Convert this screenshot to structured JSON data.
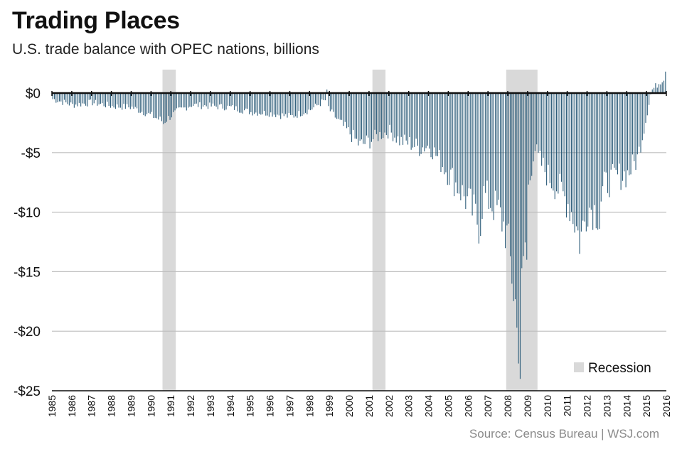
{
  "chart_data": {
    "type": "bar",
    "title": "Trading Places",
    "subtitle": "U.S. trade balance with OPEC nations, billions",
    "source": "Source: Census Bureau  |  WSJ.com",
    "ylim": [
      -25,
      2
    ],
    "yticks": [
      0,
      -5,
      -10,
      -15,
      -20,
      -25
    ],
    "ytick_labels": [
      "$0",
      "-$5",
      "-$10",
      "-$15",
      "-$20",
      "-$25"
    ],
    "xlim": [
      1985,
      2016.0
    ],
    "year_labels": [
      "1985",
      "1986",
      "1987",
      "1988",
      "1989",
      "1990",
      "1991",
      "1992",
      "1993",
      "1994",
      "1995",
      "1996",
      "1997",
      "1998",
      "1999",
      "2000",
      "2001",
      "2002",
      "2003",
      "2004",
      "2005",
      "2006",
      "2007",
      "2008",
      "2009",
      "2010",
      "2011",
      "2012",
      "2013",
      "2014",
      "2015",
      "2016"
    ],
    "grid": true,
    "legend": {
      "label": "Recession",
      "position": "bottom-right"
    },
    "recessions": [
      [
        1990.58,
        1991.25
      ],
      [
        2001.17,
        2001.83
      ],
      [
        2007.92,
        2009.5
      ]
    ],
    "anchors": [
      [
        1985.0,
        -0.5
      ],
      [
        1986.0,
        -1.0
      ],
      [
        1987.0,
        -0.8
      ],
      [
        1988.0,
        -1.1
      ],
      [
        1989.0,
        -1.2
      ],
      [
        1990.0,
        -1.9
      ],
      [
        1990.6,
        -2.4
      ],
      [
        1991.3,
        -1.5
      ],
      [
        1992.0,
        -1.0
      ],
      [
        1993.0,
        -1.1
      ],
      [
        1994.0,
        -1.2
      ],
      [
        1995.0,
        -1.6
      ],
      [
        1996.0,
        -1.7
      ],
      [
        1997.0,
        -2.0
      ],
      [
        1998.0,
        -1.4
      ],
      [
        1998.75,
        -0.6
      ],
      [
        1999.0,
        -1.5
      ],
      [
        1999.5,
        -2.5
      ],
      [
        2000.0,
        -3.4
      ],
      [
        2000.5,
        -4.4
      ],
      [
        2001.0,
        -4.0
      ],
      [
        2001.5,
        -3.5
      ],
      [
        2002.0,
        -3.2
      ],
      [
        2002.5,
        -4.0
      ],
      [
        2003.0,
        -4.2
      ],
      [
        2003.5,
        -4.6
      ],
      [
        2004.0,
        -4.4
      ],
      [
        2004.5,
        -5.6
      ],
      [
        2005.0,
        -6.8
      ],
      [
        2005.5,
        -8.0
      ],
      [
        2006.0,
        -9.3
      ],
      [
        2006.5,
        -11.0
      ],
      [
        2006.75,
        -8.5
      ],
      [
        2007.0,
        -9.0
      ],
      [
        2007.5,
        -10.0
      ],
      [
        2007.9,
        -11.8
      ],
      [
        2008.25,
        -16.5
      ],
      [
        2008.5,
        -20.0
      ],
      [
        2008.75,
        -15.0
      ],
      [
        2009.0,
        -8.0
      ],
      [
        2009.3,
        -4.5
      ],
      [
        2009.5,
        -5.5
      ],
      [
        2010.0,
        -7.0
      ],
      [
        2010.5,
        -8.0
      ],
      [
        2011.0,
        -9.2
      ],
      [
        2011.3,
        -10.5
      ],
      [
        2011.6,
        -12.5
      ],
      [
        2011.8,
        -11.0
      ],
      [
        2012.0,
        -9.5
      ],
      [
        2012.5,
        -10.0
      ],
      [
        2012.8,
        -8.0
      ],
      [
        2013.0,
        -7.5
      ],
      [
        2013.5,
        -7.0
      ],
      [
        2014.0,
        -6.8
      ],
      [
        2014.5,
        -5.5
      ],
      [
        2014.9,
        -2.5
      ],
      [
        2015.2,
        0.2
      ],
      [
        2015.5,
        0.7
      ],
      [
        2015.8,
        1.2
      ],
      [
        2016.0,
        1.5
      ]
    ],
    "extremes": [
      [
        1990.55,
        -2.6
      ],
      [
        1998.83,
        0.3
      ],
      [
        2006.6,
        -12.0
      ],
      [
        2008.2,
        -16.0
      ],
      [
        2008.45,
        -19.7
      ],
      [
        2008.6,
        -24.0
      ],
      [
        2008.9,
        -14.0
      ],
      [
        2011.6,
        -13.5
      ],
      [
        2012.6,
        -11.4
      ],
      [
        2015.95,
        1.8
      ]
    ],
    "colors": {
      "bar": "#2e5d7a",
      "recession": "#d9d9d9",
      "grid": "#bdbdbd",
      "zero": "#111111"
    }
  }
}
